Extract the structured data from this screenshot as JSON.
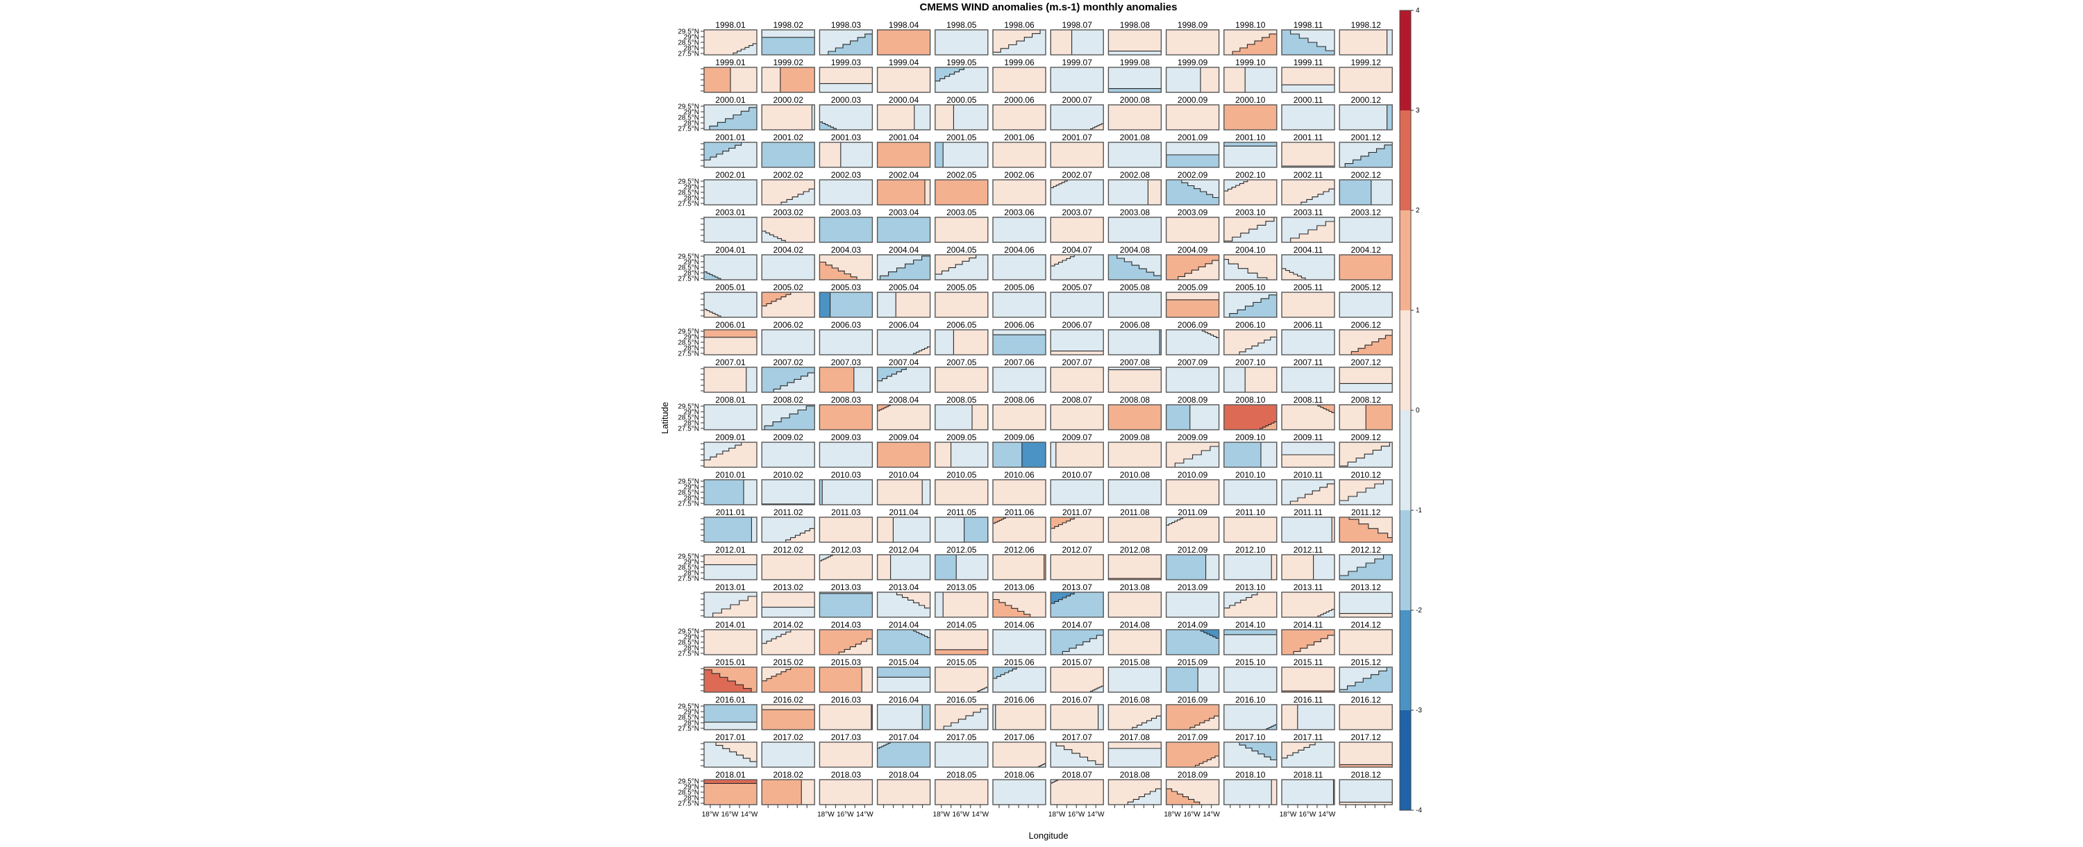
{
  "chart_data": {
    "type": "heatmap",
    "title": "CMEMS WIND anomalies (m.s-1) monthly anomalies",
    "xlabel": "Longitude",
    "ylabel": "Latitude",
    "lat_ticks": [
      "29.5°N",
      "29°N",
      "28.5°N",
      "28°N",
      "27.5°N"
    ],
    "lat_values": [
      29.5,
      29,
      28.5,
      28,
      27.5
    ],
    "lon_ticks": [
      "18°W",
      "16°W",
      "14°W"
    ],
    "lon_values": [
      -18,
      -16,
      -14
    ],
    "lon_minor": [
      -18,
      -17,
      -16,
      -15,
      -14
    ],
    "colorbar": {
      "ticks": [
        "4",
        "3",
        "2",
        "1",
        "0",
        "-1",
        "-2",
        "-3",
        "-4"
      ],
      "range": [
        -4,
        4
      ],
      "bins": [
        {
          "code": "d",
          "from": -4,
          "to": -3,
          "color": "#2163a8"
        },
        {
          "code": "m",
          "from": -3,
          "to": -2,
          "color": "#4a93c4"
        },
        {
          "code": "b",
          "from": -2,
          "to": -1,
          "color": "#a6cde2"
        },
        {
          "code": "l",
          "from": -1,
          "to": 0,
          "color": "#ddeaf1"
        },
        {
          "code": "p",
          "from": 0,
          "to": 1,
          "color": "#f9e4d8"
        },
        {
          "code": "o",
          "from": 1,
          "to": 2,
          "color": "#f4b190"
        },
        {
          "code": "r",
          "from": 2,
          "to": 3,
          "color": "#dd6a55"
        },
        {
          "code": "R",
          "from": 3,
          "to": 4,
          "color": "#b3192d"
        }
      ]
    },
    "cell_format": "dominant_bin|secondary_bin|secondary_region|secondary_area_fraction",
    "months": [
      "01",
      "02",
      "03",
      "04",
      "05",
      "06",
      "07",
      "08",
      "09",
      "10",
      "11",
      "12"
    ],
    "rows": [
      {
        "year": "1998",
        "cells": [
          "p|l|br|0.1",
          "b|l|t|0.3",
          "l|b|br|0.35",
          "o",
          "l",
          "l|p|tl|0.4",
          "l|p|l|0.4",
          "p|l|b|0.15",
          "p",
          "p|o|br|0.35",
          "l|b|bl|0.5",
          "p|l|r|0.1"
        ]
      },
      {
        "year": "1999",
        "cells": [
          "p|o|l|0.5",
          "p|o|r|0.65",
          "p|l|b|0.35",
          "p",
          "l|b|tl|0.15",
          "p",
          "l",
          "l|b|b|0.15",
          "l|p|r|0.35",
          "l|p|l|0.4",
          "p|l|b|0.3",
          "p"
        ]
      },
      {
        "year": "2000",
        "cells": [
          "l|b|br|0.4",
          "p|l|r|0.05",
          "l|b|bl|0.05",
          "p|l|r|0.3",
          "l|p|l|0.35",
          "p",
          "l|p|br|0.03",
          "p",
          "p",
          "o",
          "l",
          "l|b|r|0.1"
        ]
      },
      {
        "year": "2001",
        "cells": [
          "l|b|tl|0.25",
          "b",
          "l|p|l|0.4",
          "o",
          "l|b|l|0.15",
          "p",
          "p",
          "l",
          "l|b|b|0.5",
          "l|b|t|0.15",
          "p|l|b|0.05",
          "l|b|br|0.4"
        ]
      },
      {
        "year": "2002",
        "cells": [
          "l",
          "p|l|br|0.2",
          "l",
          "o|p|r|0.1",
          "o",
          "p",
          "l|p|tl|0.05",
          "l|p|r|0.25",
          "b|l|tr|0.25",
          "p|l|tl|0.1",
          "p|l|br|0.2",
          "l|b|l|0.6"
        ]
      },
      {
        "year": "2003",
        "cells": [
          "l",
          "p|l|bl|0.1",
          "b",
          "b",
          "p",
          "l",
          "p",
          "l",
          "p",
          "l|p|tl|0.45",
          "p|l|tl|0.5",
          "l"
        ]
      },
      {
        "year": "2004",
        "cells": [
          "l|b|bl|0.05",
          "l",
          "p|o|bl|0.25",
          "l|b|br|0.45",
          "l|p|tl|0.3",
          "l",
          "l|p|tl|0.1",
          "b|l|tr|0.35",
          "o|p|br|0.3",
          "l|p|tr|0.6",
          "l|p|bl|0.1",
          "o"
        ]
      },
      {
        "year": "2005",
        "cells": [
          "l|p|bl|0.05",
          "p|o|tl|0.15",
          "b|m|l|0.2",
          "p|l|l|0.35",
          "p",
          "l",
          "l",
          "l",
          "o|p|t|0.3",
          "l|b|br|0.4",
          "p",
          "l"
        ]
      },
      {
        "year": "2006",
        "cells": [
          "p|o|t|0.3",
          "l",
          "l",
          "l|p|br|0.05",
          "p|l|l|0.35",
          "b|l|t|0.2",
          "l|p|b|0.15",
          "l|b|r|0.03",
          "l|p|tr|0.05",
          "p|l|br|0.25",
          "l",
          "p|o|br|0.3"
        ]
      },
      {
        "year": "2007",
        "cells": [
          "p|l|r|0.2",
          "b|l|br|0.3",
          "o|l|r|0.35",
          "l|b|tl|0.15",
          "p",
          "l",
          "p",
          "p|l|t|0.1",
          "l",
          "p|l|l|0.4",
          "l",
          "p|l|b|0.35"
        ]
      },
      {
        "year": "2008",
        "cells": [
          "l",
          "l|b|br|0.45",
          "o",
          "p|o|tl|0.03",
          "l|p|r|0.3",
          "p",
          "p",
          "o",
          "l|b|l|0.45",
          "r|o|br|0.05",
          "p|o|tr|0.05",
          "p|o|r|0.5"
        ]
      },
      {
        "year": "2009",
        "cells": [
          "p|l|tl|0.25",
          "l",
          "l",
          "o",
          "l|p|l|0.3",
          "b|m|r|0.45",
          "p|l|l|0.1",
          "p",
          "l|p|tl|0.5",
          "b|l|r|0.3",
          "l|p|b|0.5",
          "l|p|tl|0.45"
        ]
      },
      {
        "year": "2010",
        "cells": [
          "l|b|l|0.75",
          "l|b|b|0.03",
          "l|b|l|0.05",
          "p|l|r|0.15",
          "p",
          "p",
          "l",
          "l",
          "p",
          "l",
          "l|p|br|0.35",
          "p|l|br|0.5"
        ]
      },
      {
        "year": "2011",
        "cells": [
          "b|l|r|0.1",
          "l|p|br|0.15",
          "p",
          "l|p|l|0.3",
          "l|b|r|0.45",
          "p|o|tl|0.03",
          "p|o|tl|0.1",
          "p",
          "p|l|tl|0.05",
          "p",
          "l|p|r|0.05",
          "p|o|bl|0.6"
        ]
      },
      {
        "year": "2012",
        "cells": [
          "l|p|t|0.4",
          "p",
          "p|l|tl|0.03",
          "l|p|l|0.25",
          "l|b|l|0.4",
          "p|o|r|0.03",
          "p",
          "p|o|b|0.05",
          "b|l|r|0.25",
          "l|p|r|0.1",
          "p|l|r|0.4",
          "l|b|br|0.5"
        ]
      },
      {
        "year": "2013",
        "cells": [
          "p|l|tl|0.5",
          "p|l|b|0.4",
          "b|l|t|0.05",
          "l|p|tr|0.2",
          "p|l|l|0.15",
          "p|o|bl|0.25",
          "b|m|tl|0.1",
          "p",
          "l",
          "p|l|tl|0.2",
          "p|l|br|0.05",
          "l|p|b|0.15"
        ]
      },
      {
        "year": "2014",
        "cells": [
          "p",
          "p|l|tl|0.15",
          "o|p|br|0.2",
          "b|l|tr|0.05",
          "p|o|b|0.2",
          "l",
          "b|l|br|0.3",
          "p",
          "b|m|tr|0.06",
          "l|b|t|0.2",
          "o|p|br|0.3",
          "p"
        ]
      },
      {
        "year": "2015",
        "cells": [
          "o|r|bl|0.4",
          "o|p|tl|0.15",
          "o|p|r|0.2",
          "l|b|t|0.4",
          "p|l|br|0.02",
          "l|b|tl|0.1",
          "p|l|br|0.03",
          "l",
          "l|b|l|0.6",
          "l",
          "p|o|b|0.05",
          "b|l|tl|0.4"
        ]
      },
      {
        "year": "2016",
        "cells": [
          "b|l|b|0.3",
          "o|p|t|0.2",
          "p|o|r|0.02",
          "l|b|r|0.15",
          "p|l|br|0.35",
          "p|l|l|0.05",
          "p|l|r|0.1",
          "p|l|br|0.15",
          "o|p|br|0.15",
          "l|b|br|0.02",
          "l|p|l|0.3",
          "p"
        ]
      },
      {
        "year": "2017",
        "cells": [
          "l|p|tr|0.3",
          "l",
          "p",
          "b|l|tl|0.03",
          "l",
          "p|l|br|0.01",
          "l|p|tr|0.4",
          "l|p|t|0.25",
          "o|p|br|0.1",
          "l|b|tr|0.25",
          "l|p|tl|0.2",
          "p|o|b|0.1"
        ]
      },
      {
        "year": "2018",
        "cells": [
          "o|r|t|0.15",
          "o|p|r|0.25",
          "p",
          "p",
          "p",
          "l",
          "p|l|tl|0.01",
          "p|l|br|0.2",
          "p|o|bl|0.2",
          "l|p|r|0.1",
          "l|p|r|0.02",
          "l|p|b|0.1"
        ]
      }
    ]
  }
}
